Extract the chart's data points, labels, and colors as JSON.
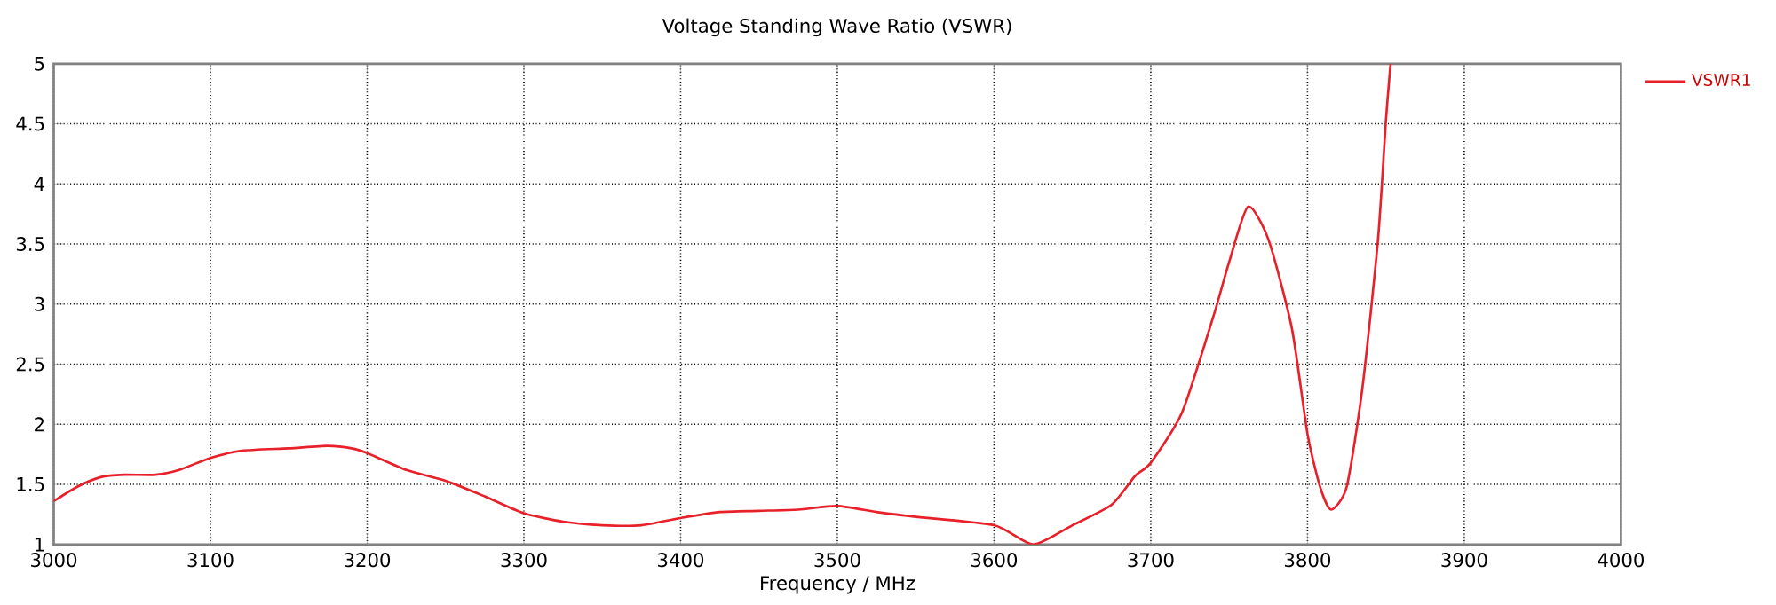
{
  "chart_data": {
    "type": "line",
    "title": "Voltage Standing Wave Ratio (VSWR)",
    "xlabel": "Frequency / MHz",
    "xlim": [
      3000,
      4000
    ],
    "ylim": [
      1,
      5
    ],
    "xticks": [
      3000,
      3100,
      3200,
      3300,
      3400,
      3500,
      3600,
      3700,
      3800,
      3900,
      4000
    ],
    "yticks": [
      1,
      1.5,
      2,
      2.5,
      3,
      3.5,
      4,
      4.5,
      5
    ],
    "grid": true,
    "legend": "top right",
    "marker": "none",
    "line_style": "solid",
    "series": [
      {
        "name": "VSWR1",
        "color": "#e8202a",
        "x": [
          3000,
          3015,
          3030,
          3045,
          3065,
          3080,
          3100,
          3120,
          3150,
          3175,
          3190,
          3200,
          3225,
          3250,
          3275,
          3300,
          3325,
          3350,
          3375,
          3400,
          3425,
          3450,
          3475,
          3500,
          3525,
          3550,
          3600,
          3625,
          3650,
          3675,
          3690,
          3700,
          3720,
          3740,
          3750,
          3762,
          3775,
          3790,
          3800,
          3808,
          3815,
          3825,
          3835,
          3845,
          3850,
          3853
        ],
        "values": [
          1.36,
          1.48,
          1.56,
          1.58,
          1.58,
          1.62,
          1.72,
          1.78,
          1.8,
          1.82,
          1.8,
          1.76,
          1.62,
          1.53,
          1.4,
          1.26,
          1.19,
          1.16,
          1.16,
          1.22,
          1.27,
          1.28,
          1.29,
          1.32,
          1.27,
          1.23,
          1.16,
          1.0,
          1.16,
          1.33,
          1.57,
          1.68,
          2.1,
          2.9,
          3.35,
          3.81,
          3.54,
          2.8,
          1.92,
          1.48,
          1.29,
          1.48,
          2.3,
          3.54,
          4.52,
          5
        ]
      }
    ]
  }
}
